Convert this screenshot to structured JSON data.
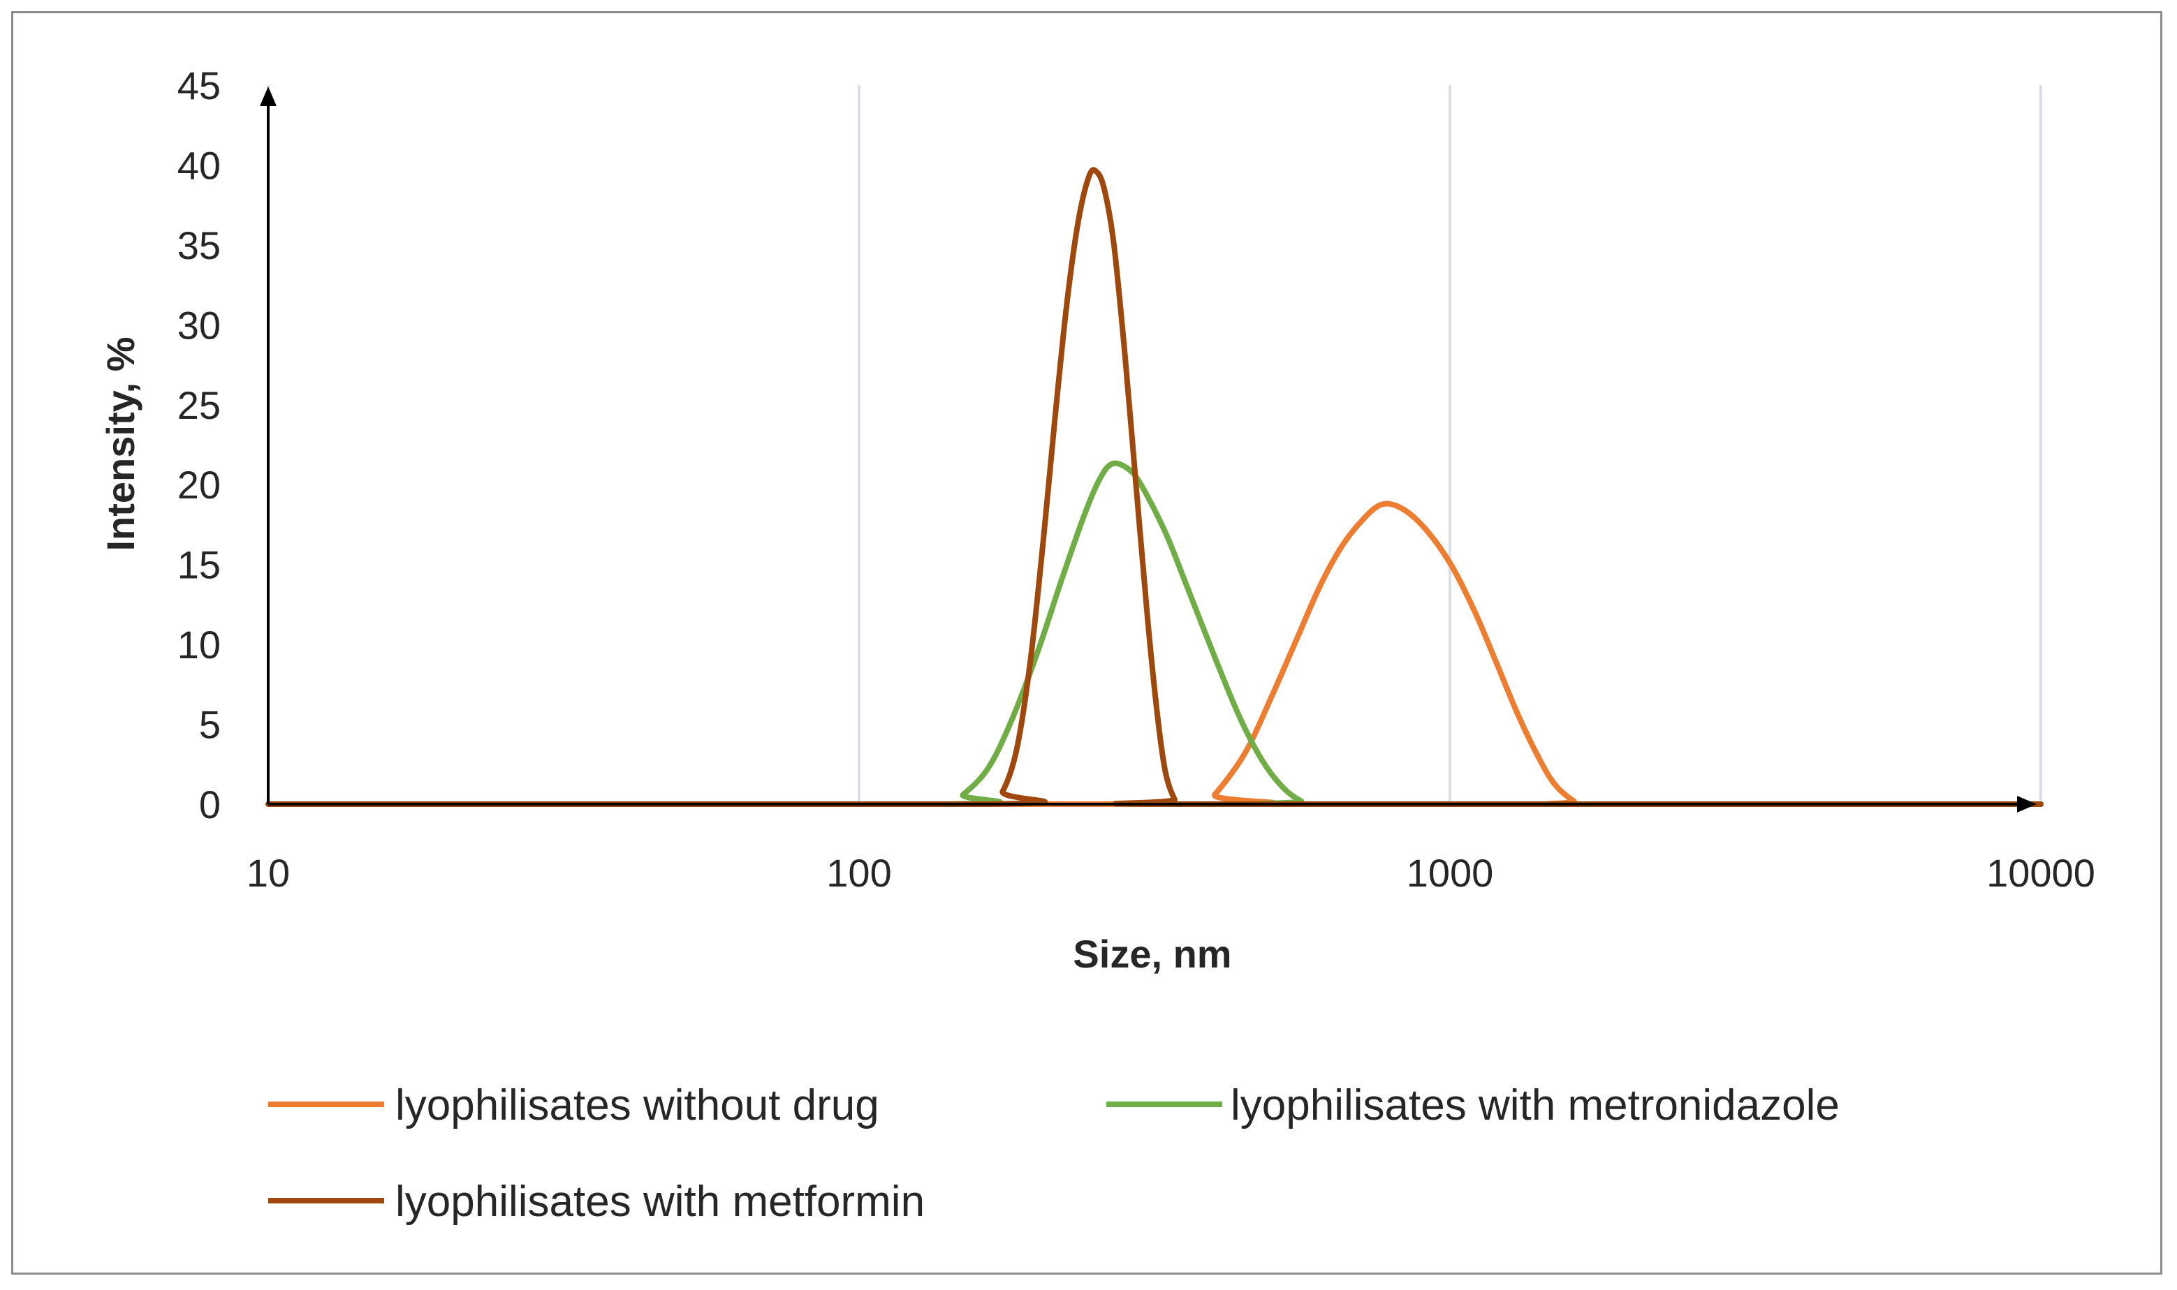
{
  "chart_data": {
    "type": "line",
    "title": "",
    "xlabel": "Size, nm",
    "ylabel": "Intensity, %",
    "xscale": "log",
    "xlim": [
      10,
      10000
    ],
    "ylim": [
      0,
      45
    ],
    "x_ticks": [
      "10",
      "100",
      "1000",
      "10000"
    ],
    "y_ticks": [
      "0",
      "5",
      "10",
      "15",
      "20",
      "25",
      "30",
      "35",
      "40",
      "45"
    ],
    "grid": "vertical",
    "legend_position": "bottom",
    "series": [
      {
        "name": "lyophilisates without drug",
        "color": "#ed7d31",
        "points": [
          [
            10,
            0
          ],
          [
            380,
            0
          ],
          [
            400,
            0.6
          ],
          [
            450,
            3.2
          ],
          [
            500,
            6.8
          ],
          [
            550,
            10.3
          ],
          [
            600,
            13.5
          ],
          [
            650,
            15.9
          ],
          [
            700,
            17.5
          ],
          [
            760,
            18.7
          ],
          [
            820,
            18.6
          ],
          [
            900,
            17.4
          ],
          [
            1000,
            15.1
          ],
          [
            1100,
            12.1
          ],
          [
            1200,
            8.8
          ],
          [
            1300,
            5.7
          ],
          [
            1400,
            3.2
          ],
          [
            1500,
            1.3
          ],
          [
            1620,
            0.2
          ],
          [
            1700,
            0
          ],
          [
            10000,
            0
          ]
        ]
      },
      {
        "name": "lyophilisates with metronidazole",
        "color": "#70ad47",
        "points": [
          [
            10,
            0
          ],
          [
            140,
            0
          ],
          [
            150,
            0.6
          ],
          [
            165,
            2.2
          ],
          [
            180,
            5.0
          ],
          [
            200,
            9.4
          ],
          [
            220,
            14.0
          ],
          [
            240,
            18.0
          ],
          [
            255,
            20.3
          ],
          [
            268,
            21.3
          ],
          [
            285,
            21.0
          ],
          [
            300,
            20.0
          ],
          [
            330,
            17.0
          ],
          [
            360,
            13.5
          ],
          [
            400,
            9.2
          ],
          [
            440,
            5.5
          ],
          [
            480,
            2.8
          ],
          [
            520,
            1.1
          ],
          [
            560,
            0.2
          ],
          [
            600,
            0
          ],
          [
            10000,
            0
          ]
        ]
      },
      {
        "name": "lyophilisates with metformin",
        "color": "#9e480e",
        "points": [
          [
            10,
            0
          ],
          [
            165,
            0
          ],
          [
            175,
            0.8
          ],
          [
            185,
            3.5
          ],
          [
            195,
            9.0
          ],
          [
            205,
            16.5
          ],
          [
            215,
            24.5
          ],
          [
            225,
            31.5
          ],
          [
            235,
            36.5
          ],
          [
            245,
            39.3
          ],
          [
            252,
            39.6
          ],
          [
            260,
            38.5
          ],
          [
            270,
            35.0
          ],
          [
            282,
            28.0
          ],
          [
            295,
            19.5
          ],
          [
            308,
            11.5
          ],
          [
            320,
            5.5
          ],
          [
            330,
            2.0
          ],
          [
            342,
            0.3
          ],
          [
            350,
            0
          ],
          [
            10000,
            0
          ]
        ]
      }
    ]
  }
}
